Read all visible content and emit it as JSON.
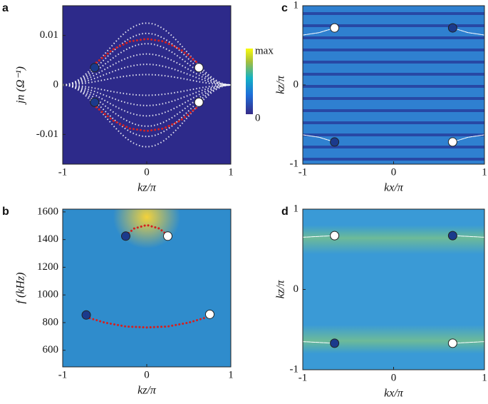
{
  "chart_data": [
    {
      "type": "heatmap",
      "panel_label": "a",
      "xlabel": "kz/π",
      "ylabel": "jn (Ω⁻¹)",
      "background": "#2d2a8a",
      "xlim": [
        -1,
        1
      ],
      "ylim": [
        -0.016,
        0.016
      ],
      "xticks": [
        -1,
        0,
        1
      ],
      "yticks": [
        -0.01,
        0,
        0.01
      ],
      "colorbar_labels": [
        "max",
        "0"
      ],
      "series": [
        {
          "type": "line",
          "color": "#d42020",
          "x": [
            -0.6,
            -0.4,
            -0.2,
            0,
            0.2,
            0.4,
            0.6
          ],
          "values": [
            0.0045,
            0.0072,
            0.0088,
            0.0093,
            0.0088,
            0.0072,
            0.0045
          ]
        },
        {
          "type": "line",
          "color": "#d42020",
          "x": [
            -0.6,
            -0.4,
            -0.2,
            0,
            0.2,
            0.4,
            0.6
          ],
          "values": [
            -0.0045,
            -0.0072,
            -0.0088,
            -0.0093,
            -0.0088,
            -0.0072,
            -0.0045
          ]
        },
        {
          "type": "scatter",
          "color": "#1b3a8c",
          "x": [
            -0.62,
            -0.62
          ],
          "values": [
            0.0035,
            -0.0035
          ]
        },
        {
          "type": "scatter",
          "color": "#ffffff",
          "x": [
            0.62,
            0.62
          ],
          "values": [
            0.0035,
            -0.0035
          ]
        }
      ]
    },
    {
      "type": "heatmap",
      "panel_label": "c",
      "xlabel": "kx/π",
      "ylabel": "kz/π",
      "background": "#2f80d0",
      "xlim": [
        -1,
        1
      ],
      "ylim": [
        -1,
        1
      ],
      "xticks": [
        -1,
        0,
        1
      ],
      "yticks": [
        -1,
        0,
        1
      ],
      "series": [
        {
          "type": "line",
          "color": "#ffffff",
          "x": [
            -1,
            -0.82,
            -0.65
          ],
          "values": [
            0.63,
            0.66,
            0.72
          ]
        },
        {
          "type": "line",
          "color": "#ffffff",
          "x": [
            0.65,
            0.82,
            1
          ],
          "values": [
            0.72,
            0.66,
            0.63
          ]
        },
        {
          "type": "line",
          "color": "#ffffff",
          "x": [
            -1,
            -0.82,
            -0.65
          ],
          "values": [
            -0.63,
            -0.66,
            -0.72
          ]
        },
        {
          "type": "line",
          "color": "#ffffff",
          "x": [
            0.65,
            0.82,
            1
          ],
          "values": [
            -0.72,
            -0.66,
            -0.63
          ]
        },
        {
          "type": "scatter",
          "color": "#1b3a8c",
          "x": [
            0.65,
            -0.65
          ],
          "values": [
            0.72,
            -0.72
          ]
        },
        {
          "type": "scatter",
          "color": "#ffffff",
          "x": [
            -0.65,
            0.65
          ],
          "values": [
            0.72,
            -0.72
          ]
        }
      ]
    },
    {
      "type": "heatmap",
      "panel_label": "b",
      "xlabel": "kz/π",
      "ylabel": "f (kHz)",
      "background": "#2f8ccc",
      "xlim": [
        -1,
        1
      ],
      "ylim": [
        480,
        1620
      ],
      "xticks": [
        -1,
        0,
        1
      ],
      "yticks": [
        600,
        800,
        1000,
        1200,
        1400,
        1600
      ],
      "series": [
        {
          "type": "line",
          "color": "#d42020",
          "x": [
            -0.25,
            -0.15,
            0,
            0.15,
            0.25
          ],
          "values": [
            1430,
            1480,
            1505,
            1480,
            1430
          ]
        },
        {
          "type": "line",
          "color": "#d42020",
          "x": [
            -0.72,
            -0.5,
            -0.25,
            0,
            0.25,
            0.5,
            0.75
          ],
          "values": [
            840,
            800,
            772,
            765,
            772,
            800,
            845
          ]
        },
        {
          "type": "scatter",
          "color": "#1b3a8c",
          "x": [
            -0.25,
            -0.72
          ],
          "values": [
            1425,
            855
          ]
        },
        {
          "type": "scatter",
          "color": "#ffffff",
          "x": [
            0.25,
            0.75
          ],
          "values": [
            1425,
            860
          ]
        }
      ]
    },
    {
      "type": "heatmap",
      "panel_label": "d",
      "xlabel": "kx/π",
      "ylabel": "kz/π",
      "background": "#3a9ad6",
      "xlim": [
        -1,
        1
      ],
      "ylim": [
        -1,
        1
      ],
      "xticks": [
        -1,
        0,
        1
      ],
      "yticks": [
        -1,
        0,
        1
      ],
      "series": [
        {
          "type": "line",
          "color": "#ffffff",
          "x": [
            -1,
            -0.65
          ],
          "values": [
            0.65,
            0.67
          ]
        },
        {
          "type": "line",
          "color": "#ffffff",
          "x": [
            0.65,
            1
          ],
          "values": [
            0.67,
            0.65
          ]
        },
        {
          "type": "line",
          "color": "#ffffff",
          "x": [
            -1,
            -0.65
          ],
          "values": [
            -0.65,
            -0.67
          ]
        },
        {
          "type": "line",
          "color": "#ffffff",
          "x": [
            0.65,
            1
          ],
          "values": [
            -0.67,
            -0.65
          ]
        },
        {
          "type": "scatter",
          "color": "#1b3a8c",
          "x": [
            0.65,
            -0.65
          ],
          "values": [
            0.67,
            -0.67
          ]
        },
        {
          "type": "scatter",
          "color": "#ffffff",
          "x": [
            -0.65,
            0.65
          ],
          "values": [
            0.67,
            -0.67
          ]
        }
      ]
    }
  ]
}
